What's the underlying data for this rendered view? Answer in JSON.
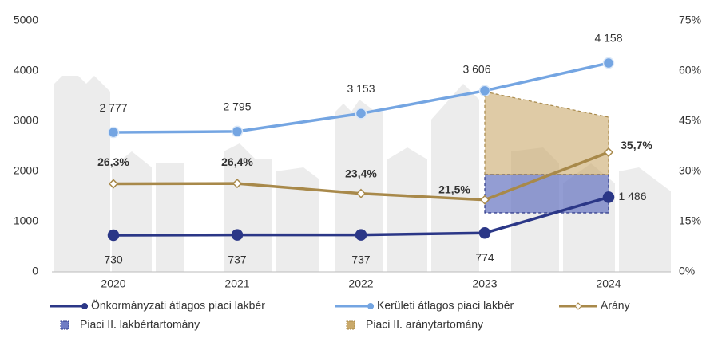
{
  "chart_data": {
    "type": "line",
    "categories": [
      "2020",
      "2021",
      "2022",
      "2023",
      "2024"
    ],
    "ylim": [
      0,
      5000
    ],
    "yticks": [
      0,
      1000,
      2000,
      3000,
      4000,
      5000
    ],
    "y2lim": [
      0,
      75
    ],
    "y2ticks": [
      {
        "value": 0,
        "label": "0%"
      },
      {
        "value": 15,
        "label": "15%"
      },
      {
        "value": 30,
        "label": "30%"
      },
      {
        "value": 45,
        "label": "45%"
      },
      {
        "value": 60,
        "label": "60%"
      },
      {
        "value": 75,
        "label": "75%"
      }
    ],
    "series": [
      {
        "name": "Önkormányzati átlagos piaci lakbér",
        "color": "#2b3787",
        "values": [
          730,
          737,
          737,
          774,
          1486
        ],
        "value_labels": [
          "730",
          "737",
          "737",
          "774",
          "1 486"
        ]
      },
      {
        "name": "Kerületi átlagos piaci lakbér",
        "color": "#74a5e2",
        "values": [
          2777,
          2795,
          3153,
          3606,
          4158
        ],
        "value_labels": [
          "2 777",
          "2 795",
          "3 153",
          "3 606",
          "4 158"
        ]
      },
      {
        "name": "Arány",
        "color": "#a8894a",
        "axis": "y2",
        "values": [
          26.3,
          26.4,
          23.4,
          21.5,
          35.7
        ],
        "value_labels": [
          "26,3%",
          "26,4%",
          "23,4%",
          "21,5%",
          "35,7%"
        ]
      }
    ],
    "ranges": [
      {
        "name": "Piaci II. lakbértartomány",
        "color": "#6f7cc4",
        "low": [
          null,
          null,
          null,
          1175,
          1175
        ],
        "high": [
          null,
          null,
          null,
          1940,
          1940
        ]
      },
      {
        "name": "Piaci II. aránytartomány",
        "color": "#c9a96a",
        "axis": "y2",
        "low": [
          null,
          null,
          null,
          29,
          29
        ],
        "high": [
          null,
          null,
          null,
          53.8,
          46.2
        ]
      }
    ]
  }
}
